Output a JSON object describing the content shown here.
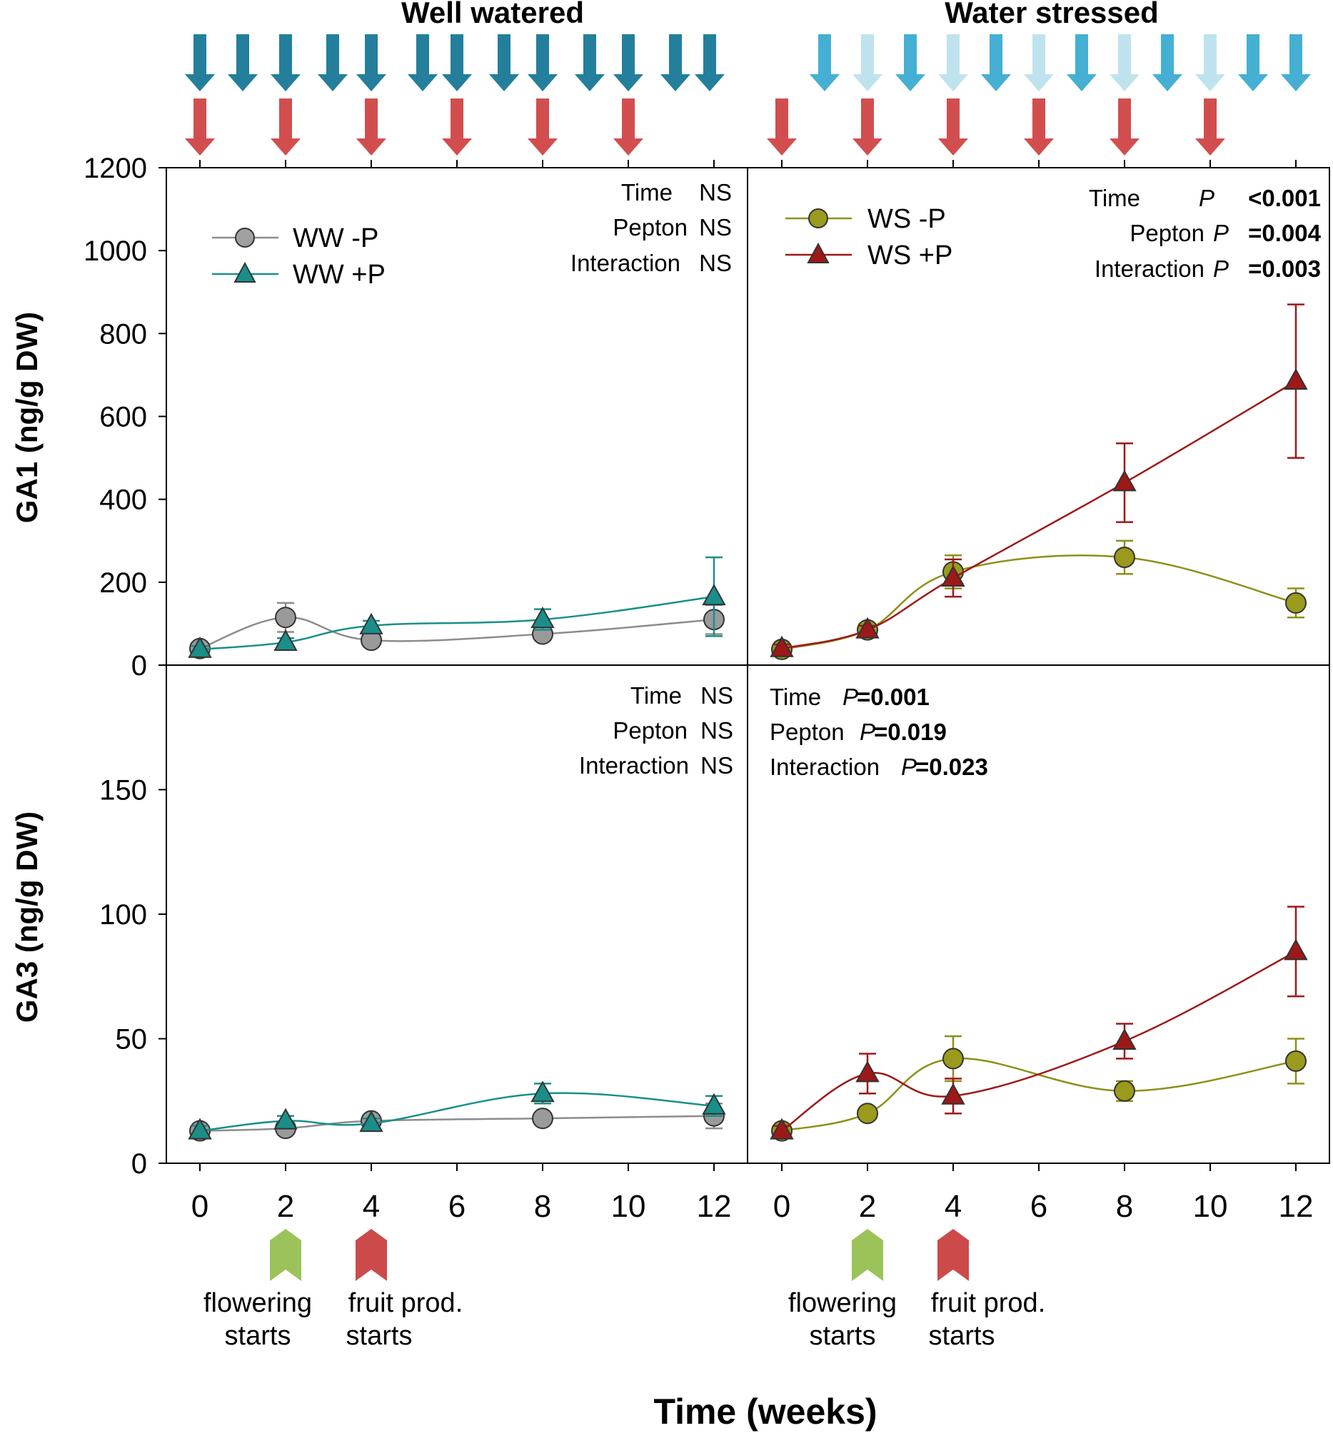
{
  "colors": {
    "ww_minus": "#8c8c8c",
    "ww_plus": "#1a8f8a",
    "ws_minus": "#8f8f1a",
    "ws_plus": "#9e1818",
    "water_arrow_dark": "#237f9c",
    "water_arrow_mid": "#45b0d3",
    "water_arrow_light": "#bfe3ee",
    "pepton_arrow": "#d24e4e",
    "flower_marker": "#9bc35a",
    "fruit_marker": "#cc4a4a"
  },
  "headers": {
    "left": "Well watered",
    "right": "Water stressed"
  },
  "axes": {
    "ylabel_top": "GA1 (ng/g DW)",
    "ylabel_bottom": "GA3 (ng/g DW)",
    "xlabel": "Time (weeks)",
    "top_yticks": [
      "0",
      "200",
      "400",
      "600",
      "800",
      "1000",
      "1200"
    ],
    "bottom_yticks": [
      "0",
      "50",
      "100",
      "150"
    ],
    "xticks_left": [
      "0",
      "2",
      "4",
      "6",
      "8",
      "10",
      "12"
    ],
    "xticks_right": [
      "0",
      "2",
      "4",
      "6",
      "8",
      "10",
      "12"
    ]
  },
  "legend": {
    "ww_minus": "WW -P",
    "ww_plus": "WW +P",
    "ws_minus": "WS -P",
    "ws_plus": "WS +P"
  },
  "stats": {
    "tl": {
      "time": "Time",
      "time_v": "NS",
      "pepton": "Pepton",
      "pepton_v": "NS",
      "inter": "Interaction",
      "inter_v": "NS"
    },
    "tr": {
      "time": "Time",
      "time_v": "<0.001",
      "pepton": "Pepton",
      "pepton_v": "=0.004",
      "inter": "Interaction",
      "inter_v": "=0.003",
      "p": "P"
    },
    "bl": {
      "time": "Time",
      "time_v": "NS",
      "pepton": "Pepton",
      "pepton_v": "NS",
      "inter": "Interaction",
      "inter_v": "NS"
    },
    "br": {
      "time": "Time",
      "time_v": "=0.001",
      "pepton": "Pepton",
      "pepton_v": "=0.019",
      "inter": "Interaction",
      "inter_v": "=0.023",
      "p": "P"
    }
  },
  "events": {
    "flower_line1": "flowering",
    "flower_line2": "starts",
    "fruit_line1": "fruit prod.",
    "fruit_line2": "starts",
    "flower_week": 2,
    "fruit_week": 4
  },
  "arrows": {
    "ww_water": {
      "weeks": [
        0,
        1,
        2,
        3.1,
        4,
        5.2,
        6,
        7.1,
        8,
        9.1,
        10,
        11.1,
        11.9
      ],
      "shade": [
        "dark",
        "dark",
        "dark",
        "dark",
        "dark",
        "dark",
        "dark",
        "dark",
        "dark",
        "dark",
        "dark",
        "dark",
        "dark"
      ]
    },
    "ww_pepton": [
      0,
      2,
      4,
      6,
      8,
      10
    ],
    "ws_water": {
      "weeks": [
        1,
        2,
        3,
        4,
        5,
        6,
        7,
        8,
        9,
        10,
        11,
        12
      ],
      "shade": [
        "mid",
        "light",
        "mid",
        "light",
        "mid",
        "light",
        "mid",
        "light",
        "mid",
        "light",
        "mid",
        "mid"
      ]
    },
    "ws_pepton": [
      0,
      2,
      4,
      6,
      8,
      10
    ]
  },
  "chart_data": [
    {
      "type": "line",
      "panel": "GA1 - Well watered",
      "title": "Well watered",
      "xlabel": "Time (weeks)",
      "ylabel": "GA1 (ng/g DW)",
      "xlim": [
        -0.5,
        12.8
      ],
      "ylim": [
        0,
        1200
      ],
      "series": [
        {
          "name": "WW -P",
          "x": [
            0,
            2,
            4,
            8,
            12
          ],
          "values": [
            40,
            115,
            60,
            75,
            110
          ],
          "err": [
            10,
            35,
            12,
            15,
            35
          ]
        },
        {
          "name": "WW +P",
          "x": [
            0,
            2,
            4,
            8,
            12
          ],
          "values": [
            38,
            55,
            95,
            110,
            165
          ],
          "err": [
            8,
            10,
            12,
            25,
            95
          ]
        }
      ]
    },
    {
      "type": "line",
      "panel": "GA1 - Water stressed",
      "title": "Water stressed",
      "xlabel": "Time (weeks)",
      "ylabel": "GA1 (ng/g DW)",
      "xlim": [
        -0.5,
        12.8
      ],
      "ylim": [
        0,
        1200
      ],
      "series": [
        {
          "name": "WS -P",
          "x": [
            0,
            2,
            4,
            8,
            12
          ],
          "values": [
            38,
            85,
            225,
            260,
            150
          ],
          "err": [
            10,
            10,
            40,
            40,
            35
          ]
        },
        {
          "name": "WS +P",
          "x": [
            0,
            2,
            4,
            8,
            12
          ],
          "values": [
            40,
            85,
            210,
            440,
            685
          ],
          "err": [
            10,
            10,
            45,
            95,
            185
          ]
        }
      ]
    },
    {
      "type": "line",
      "panel": "GA3 - Well watered",
      "title": "Well watered",
      "xlabel": "Time (weeks)",
      "ylabel": "GA3 (ng/g DW)",
      "xlim": [
        -0.5,
        12.8
      ],
      "ylim": [
        0,
        200
      ],
      "series": [
        {
          "name": "WW -P",
          "x": [
            0,
            2,
            4,
            8,
            12
          ],
          "values": [
            13,
            14,
            17,
            18,
            19
          ],
          "err": [
            2,
            2,
            2,
            2,
            5
          ]
        },
        {
          "name": "WW +P",
          "x": [
            0,
            2,
            4,
            8,
            12
          ],
          "values": [
            13,
            17,
            16,
            28,
            23
          ],
          "err": [
            2,
            2,
            2,
            4,
            4
          ]
        }
      ]
    },
    {
      "type": "line",
      "panel": "GA3 - Water stressed",
      "title": "Water stressed",
      "xlabel": "Time (weeks)",
      "ylabel": "GA3 (ng/g DW)",
      "xlim": [
        -0.5,
        12.8
      ],
      "ylim": [
        0,
        200
      ],
      "series": [
        {
          "name": "WS -P",
          "x": [
            0,
            2,
            4,
            8,
            12
          ],
          "values": [
            13,
            20,
            42,
            29,
            41
          ],
          "err": [
            2,
            2,
            9,
            4,
            9
          ]
        },
        {
          "name": "WS +P",
          "x": [
            0,
            2,
            4,
            8,
            12
          ],
          "values": [
            13,
            36,
            27,
            49,
            85
          ],
          "err": [
            2,
            8,
            7,
            7,
            18
          ]
        }
      ]
    }
  ]
}
